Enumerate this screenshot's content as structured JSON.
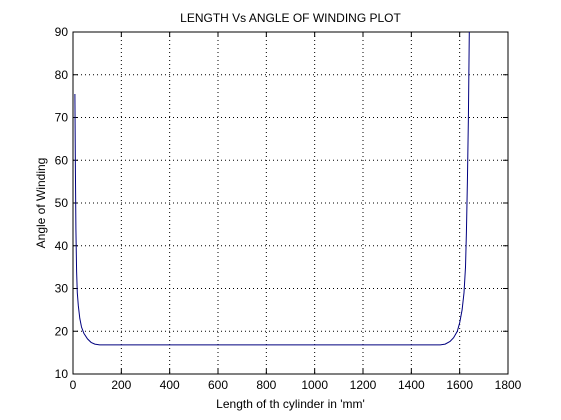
{
  "chart_data": {
    "type": "line",
    "title": "LENGTH Vs ANGLE OF WINDING PLOT",
    "xlabel": "Length of th cylinder in 'mm'",
    "ylabel": "Angle of Winding",
    "xlim": [
      0,
      1800
    ],
    "ylim": [
      10,
      90
    ],
    "xticks": [
      0,
      200,
      400,
      600,
      800,
      1000,
      1200,
      1400,
      1600,
      1800
    ],
    "yticks": [
      10,
      20,
      30,
      40,
      50,
      60,
      70,
      80,
      90
    ],
    "grid": true,
    "line_color": "#00007f",
    "series": [
      {
        "x": [
          8,
          10,
          12,
          15,
          18,
          22,
          28,
          35,
          45,
          60,
          75,
          90,
          100,
          110,
          130,
          160,
          200,
          400,
          600,
          800,
          1000,
          1200,
          1400,
          1520,
          1540,
          1560,
          1575,
          1590,
          1600,
          1610,
          1618,
          1624,
          1628,
          1632,
          1636,
          1640
        ],
        "y": [
          75.5,
          58,
          44,
          34,
          29,
          26,
          23,
          21,
          19.5,
          18.2,
          17.4,
          17.0,
          16.9,
          16.8,
          16.8,
          16.8,
          16.8,
          16.8,
          16.8,
          16.8,
          16.8,
          16.8,
          16.8,
          16.8,
          17.0,
          17.6,
          18.5,
          20,
          22,
          25,
          29,
          35,
          43,
          55,
          70,
          90
        ]
      }
    ]
  }
}
